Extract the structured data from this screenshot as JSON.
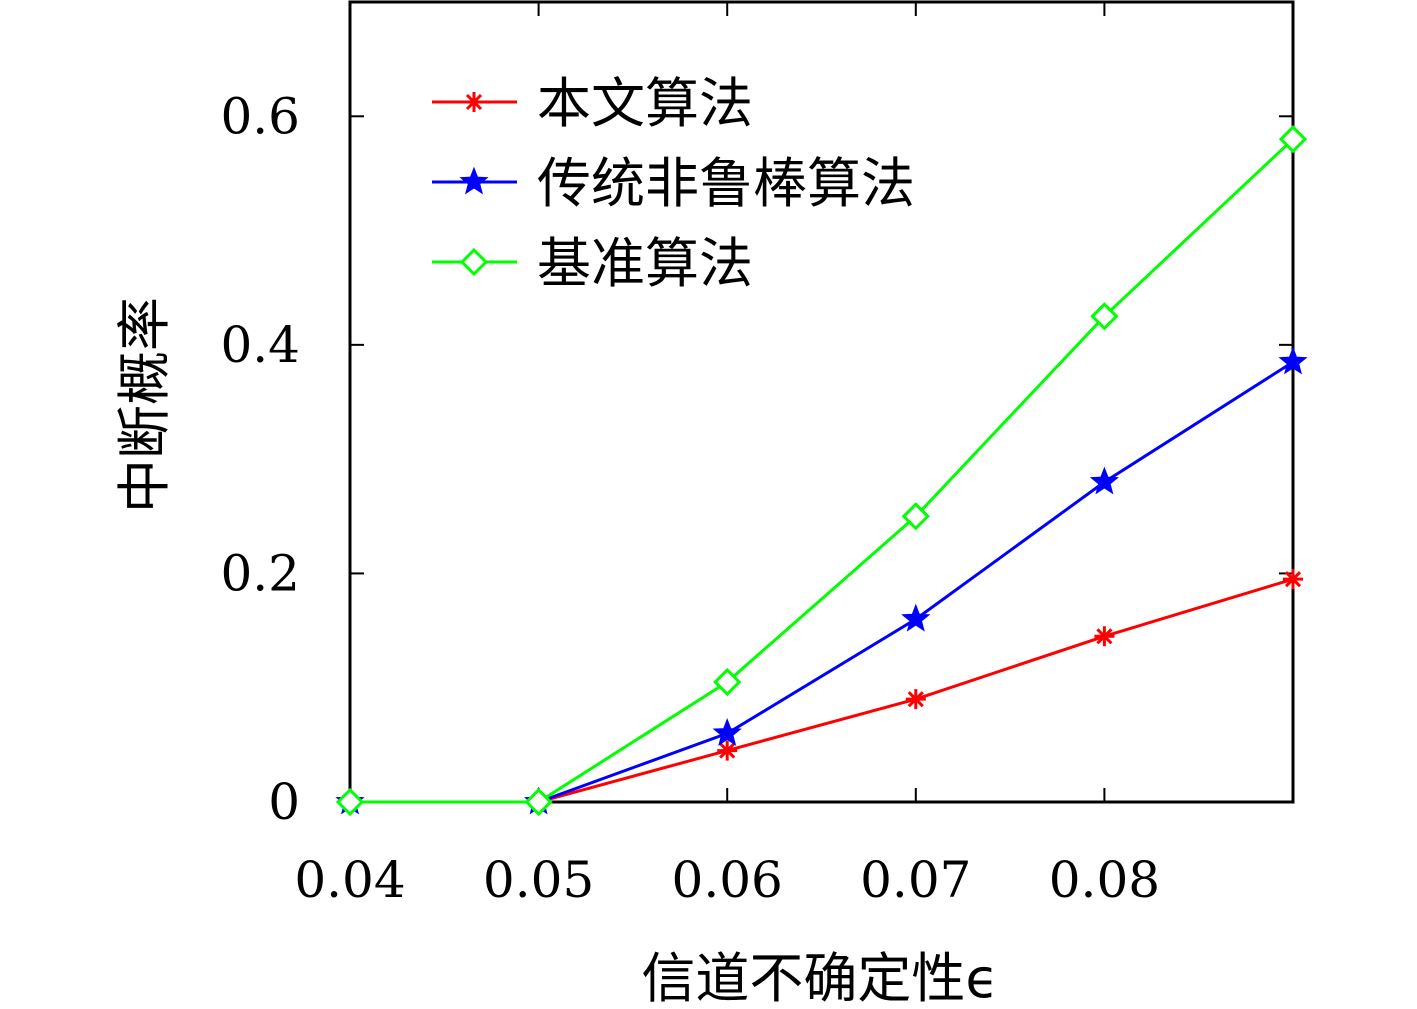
{
  "chart_data": {
    "type": "line",
    "xlabel": "信道不确定性ϵ",
    "ylabel": "中断概率",
    "x": [
      0.04,
      0.05,
      0.06,
      0.07,
      0.08,
      0.09
    ],
    "xticks": [
      "0.04",
      "0.05",
      "0.06",
      "0.07",
      "0.08"
    ],
    "yticks": [
      "0",
      "0.2",
      "0.4",
      "0.6"
    ],
    "xlim": [
      0.04,
      0.09
    ],
    "ylim": [
      0,
      0.7
    ],
    "grid": false,
    "legend_position": "top-left",
    "series": [
      {
        "name": "本文算法",
        "color": "#ff0000",
        "marker": "asterisk",
        "values": [
          0,
          0,
          0.045,
          0.09,
          0.145,
          0.195
        ]
      },
      {
        "name": "传统非鲁棒算法",
        "color": "#0000ff",
        "marker": "star",
        "values": [
          0,
          0,
          0.06,
          0.16,
          0.28,
          0.385
        ]
      },
      {
        "name": "基准算法",
        "color": "#00ff00",
        "marker": "diamond",
        "values": [
          0,
          0,
          0.105,
          0.25,
          0.425,
          0.58
        ]
      }
    ]
  }
}
